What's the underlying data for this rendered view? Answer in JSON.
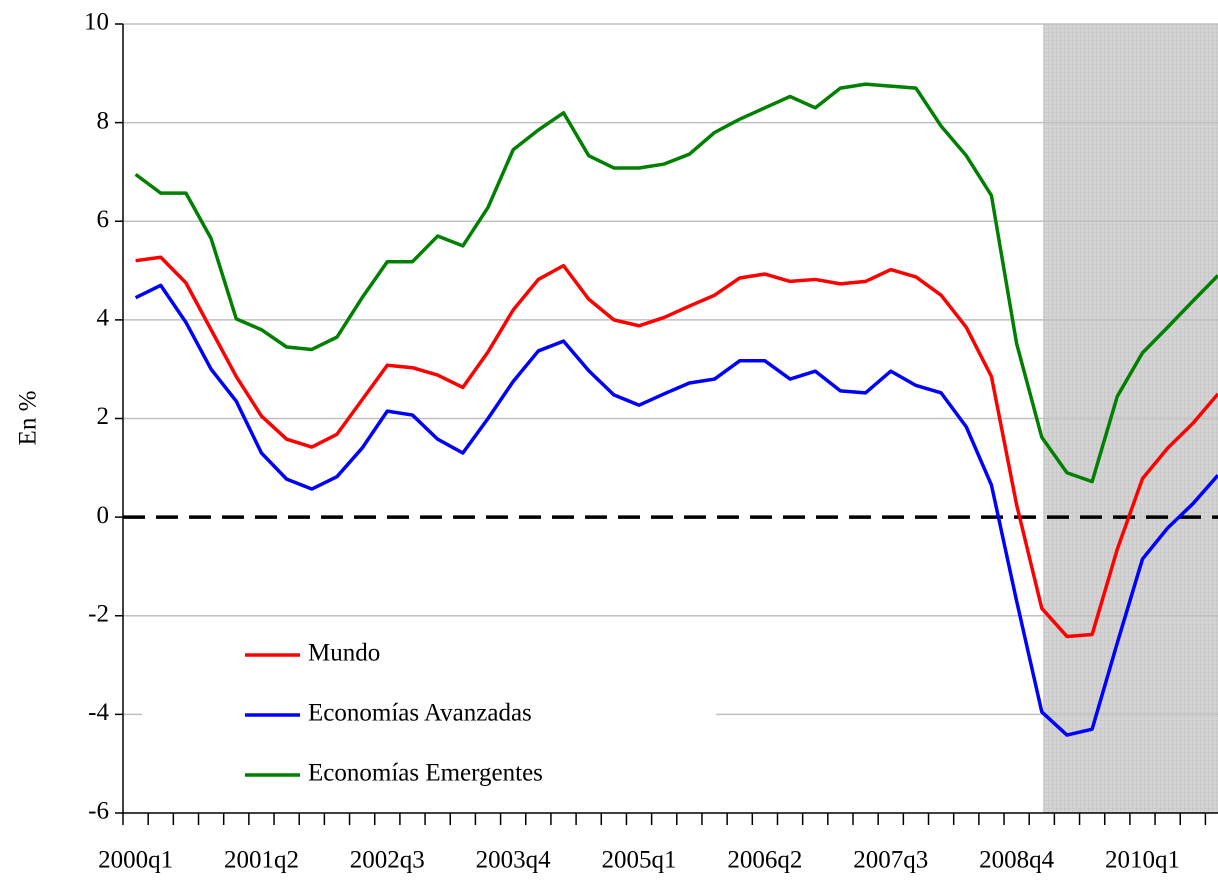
{
  "chart_data": {
    "type": "line",
    "ylabel": "En %",
    "categories": [
      "2000q1",
      null,
      null,
      null,
      null,
      "2001q2",
      null,
      null,
      null,
      null,
      "2002q3",
      null,
      null,
      null,
      null,
      "2003q4",
      null,
      null,
      null,
      null,
      "2005q1",
      null,
      null,
      null,
      null,
      "2006q2",
      null,
      null,
      null,
      null,
      "2007q3",
      null,
      null,
      null,
      null,
      "2008q4",
      null,
      null,
      null,
      null,
      "2010q1",
      null,
      null,
      null
    ],
    "series": [
      {
        "name": "Mundo",
        "color": "#ff0000",
        "values": [
          5.2,
          5.27,
          4.75,
          3.8,
          2.85,
          2.05,
          1.58,
          1.42,
          1.68,
          2.38,
          3.08,
          3.03,
          2.88,
          2.63,
          3.35,
          4.2,
          4.82,
          5.1,
          4.42,
          4.0,
          3.88,
          4.05,
          4.28,
          4.5,
          4.85,
          4.93,
          4.78,
          4.82,
          4.73,
          4.78,
          5.02,
          4.87,
          4.5,
          3.85,
          2.85,
          0.25,
          -1.85,
          -2.42,
          -2.38,
          -0.65,
          0.78,
          1.4,
          1.9,
          2.5
        ]
      },
      {
        "name": "Economías Avanzadas",
        "color": "#0000ff",
        "values": [
          4.45,
          4.7,
          3.95,
          3.0,
          2.35,
          1.3,
          0.77,
          0.57,
          0.82,
          1.4,
          2.15,
          2.07,
          1.58,
          1.3,
          2.0,
          2.75,
          3.37,
          3.57,
          2.97,
          2.48,
          2.27,
          2.5,
          2.72,
          2.8,
          3.17,
          3.17,
          2.8,
          2.96,
          2.56,
          2.52,
          2.96,
          2.67,
          2.52,
          1.83,
          0.65,
          -1.7,
          -3.95,
          -4.42,
          -4.3,
          -2.55,
          -0.85,
          -0.22,
          0.27,
          0.85
        ]
      },
      {
        "name": "Economías Emergentes",
        "color": "#008000",
        "values": [
          6.95,
          6.57,
          6.57,
          5.65,
          4.02,
          3.8,
          3.45,
          3.4,
          3.65,
          4.45,
          5.18,
          5.18,
          5.7,
          5.5,
          6.28,
          7.45,
          7.85,
          8.2,
          7.33,
          7.08,
          7.08,
          7.16,
          7.36,
          7.8,
          8.07,
          8.3,
          8.53,
          8.3,
          8.7,
          8.78,
          8.74,
          8.7,
          7.93,
          7.33,
          6.52,
          3.52,
          1.62,
          0.9,
          0.72,
          2.45,
          3.33,
          3.85,
          4.38,
          4.9
        ]
      }
    ],
    "ylim": [
      -6,
      10
    ],
    "yticks": [
      -6,
      -4,
      -2,
      0,
      2,
      4,
      6,
      8,
      10
    ],
    "grid": true,
    "zero_line": true,
    "legend": "lower left"
  }
}
